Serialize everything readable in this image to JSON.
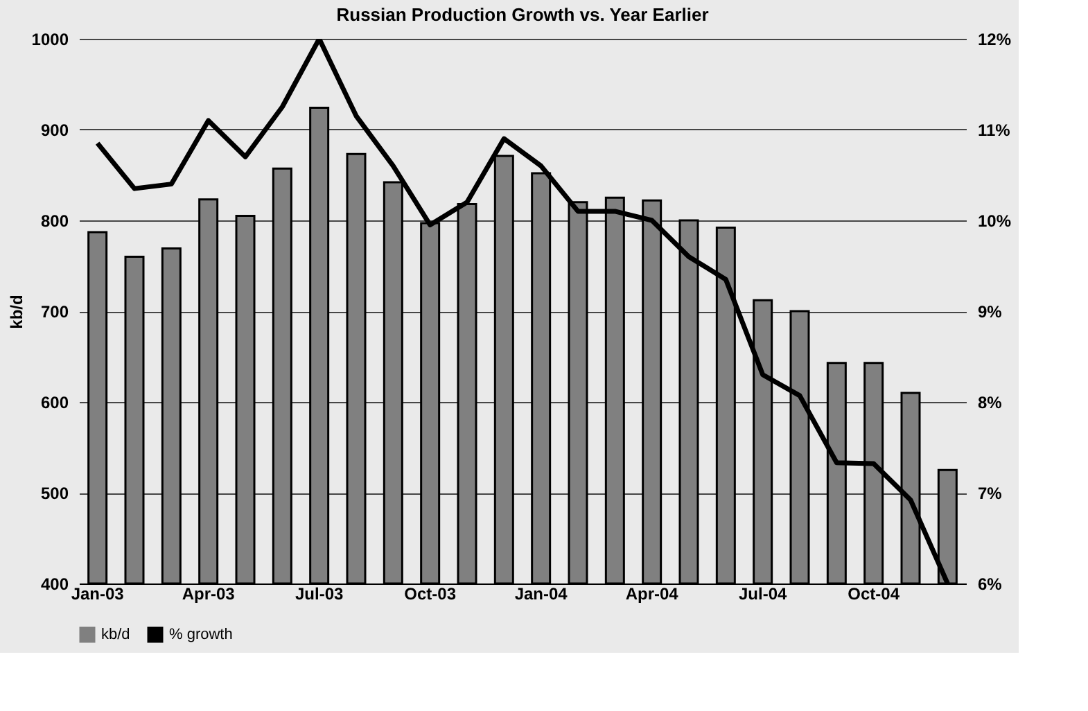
{
  "chart_data": {
    "type": "bar",
    "title": "Russian Production Growth vs. Year Earlier",
    "ylabel": "kb/d",
    "categories": [
      "Jan-03",
      null,
      null,
      "Apr-03",
      null,
      null,
      "Jul-03",
      null,
      null,
      "Oct-03",
      null,
      null,
      "Jan-04",
      null,
      null,
      "Apr-04",
      null,
      null,
      "Jul-04",
      null,
      null,
      "Oct-04",
      null,
      null
    ],
    "series": [
      {
        "name": "kb/d",
        "color": "#808080",
        "values": [
          787,
          760,
          769,
          823,
          805,
          857,
          924,
          873,
          842,
          797,
          818,
          871,
          852,
          820,
          825,
          822,
          800,
          792,
          712,
          700,
          643,
          643,
          610,
          525
        ]
      },
      {
        "name": "% growth",
        "type": "line",
        "axis": "y2",
        "color": "#000000",
        "values": [
          10.85,
          10.35,
          10.4,
          11.1,
          10.7,
          11.25,
          12.0,
          11.15,
          10.6,
          9.95,
          10.2,
          10.9,
          10.6,
          10.1,
          10.1,
          10.0,
          9.6,
          9.35,
          8.3,
          8.07,
          7.33,
          7.32,
          6.92,
          6.0
        ]
      }
    ],
    "ylim": [
      400,
      1000
    ],
    "yticks": [
      400,
      500,
      600,
      700,
      800,
      900,
      1000
    ],
    "y2lim": [
      6,
      12
    ],
    "y2ticks": [
      {
        "value": 6,
        "label": "6%"
      },
      {
        "value": 7,
        "label": "7%"
      },
      {
        "value": 8,
        "label": "8%"
      },
      {
        "value": 9,
        "label": "9%"
      },
      {
        "value": 10,
        "label": "10%"
      },
      {
        "value": 11,
        "label": "11%"
      },
      {
        "value": 12,
        "label": "12%"
      }
    ],
    "grid": "y",
    "legend": "bottom"
  }
}
